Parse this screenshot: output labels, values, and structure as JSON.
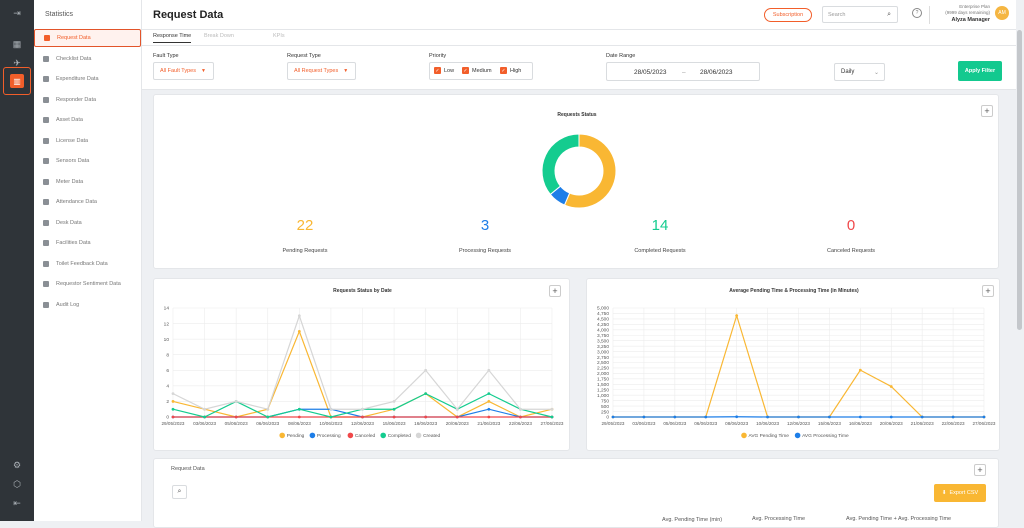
{
  "sidebar": {
    "title": "Statistics",
    "items": [
      {
        "label": "Request Data",
        "icon": "request-icon",
        "active": true
      },
      {
        "label": "Checklist Data",
        "icon": "checklist-icon"
      },
      {
        "label": "Expenditure Data",
        "icon": "expenditure-icon"
      },
      {
        "label": "Responder Data",
        "icon": "responder-icon"
      },
      {
        "label": "Asset Data",
        "icon": "asset-icon"
      },
      {
        "label": "License Data",
        "icon": "license-icon"
      },
      {
        "label": "Sensors Data",
        "icon": "sensor-icon"
      },
      {
        "label": "Meter Data",
        "icon": "meter-icon"
      },
      {
        "label": "Attendance Data",
        "icon": "attendance-icon"
      },
      {
        "label": "Desk Data",
        "icon": "desk-icon"
      },
      {
        "label": "Facilities Data",
        "icon": "facilities-icon"
      },
      {
        "label": "Toilet Feedback Data",
        "icon": "toilet-icon"
      },
      {
        "label": "Requestor Sentiment Data",
        "icon": "sentiment-icon"
      },
      {
        "label": "Audit Log",
        "icon": "audit-icon"
      }
    ]
  },
  "header": {
    "title": "Request Data",
    "subscription": "Subscription",
    "search_placeholder": "Search",
    "plan": "Enterprise Plan",
    "plan_days": "(9999 days remaining)",
    "user": "Alyza Manager",
    "avatar": "AM"
  },
  "tabs": [
    "Response Time",
    "Break Down",
    "KPIs"
  ],
  "filters": {
    "fault_label": "Fault Type",
    "fault_value": "All Fault Types",
    "request_label": "Request Type",
    "request_value": "All Request Types",
    "priority_label": "Priority",
    "priorities": [
      "Low",
      "Medium",
      "High"
    ],
    "date_label": "Date Range",
    "date_from": "28/05/2023",
    "date_sep": "–",
    "date_to": "28/06/2023",
    "period": "Daily",
    "apply": "Apply Filter"
  },
  "status_card": {
    "title": "Requests Status",
    "stats": [
      {
        "value": "22",
        "label": "Pending Requests",
        "color": "#f9b733"
      },
      {
        "value": "3",
        "label": "Processing Requests",
        "color": "#1d7ee8"
      },
      {
        "value": "14",
        "label": "Completed Requests",
        "color": "#14cc8f"
      },
      {
        "value": "0",
        "label": "Canceled Requests",
        "color": "#f0484a"
      }
    ]
  },
  "colors": {
    "accent": "#f25e2a",
    "pending": "#f9b733",
    "processing": "#1d7ee8",
    "canceled": "#f0484a",
    "completed": "#14cc8f",
    "created": "#d6d6d6"
  },
  "chart_data": [
    {
      "type": "pie",
      "title": "Requests Status",
      "categories": [
        "Pending",
        "Processing",
        "Completed",
        "Canceled"
      ],
      "values": [
        22,
        3,
        14,
        0
      ]
    },
    {
      "type": "line",
      "title": "Requests Status by Date",
      "ylim": [
        0,
        14
      ],
      "yticks": [
        0,
        2,
        4,
        6,
        8,
        10,
        12,
        14
      ],
      "x": [
        "29/05/2023",
        "03/06/2023",
        "05/06/2023",
        "06/06/2023",
        "08/06/2023",
        "10/06/2023",
        "12/06/2023",
        "15/06/2023",
        "16/06/2023",
        "20/06/2023",
        "21/06/2023",
        "22/06/2023",
        "27/06/2023"
      ],
      "series": [
        {
          "name": "Pending",
          "color": "#f9b733",
          "values": [
            2,
            1,
            0,
            1,
            11,
            0,
            0,
            1,
            3,
            0,
            2,
            0,
            1
          ]
        },
        {
          "name": "Processing",
          "color": "#1d7ee8",
          "values": [
            0,
            0,
            0,
            0,
            1,
            1,
            0,
            0,
            0,
            0,
            1,
            0,
            0
          ]
        },
        {
          "name": "Canceled",
          "color": "#f0484a",
          "values": [
            0,
            0,
            0,
            0,
            0,
            0,
            0,
            0,
            0,
            0,
            0,
            0,
            0
          ]
        },
        {
          "name": "Completed",
          "color": "#14cc8f",
          "values": [
            1,
            0,
            2,
            0,
            1,
            0,
            1,
            1,
            3,
            1,
            3,
            1,
            0
          ]
        },
        {
          "name": "Created",
          "color": "#d6d6d6",
          "values": [
            3,
            1,
            2,
            1,
            13,
            1,
            1,
            2,
            6,
            1,
            6,
            1,
            1
          ]
        }
      ]
    },
    {
      "type": "line",
      "title": "Average Pending Time & Processing Time (in Minutes)",
      "ylim": [
        0,
        5000
      ],
      "yticks": [
        "0",
        "250",
        "500",
        "750",
        "1,000",
        "1,250",
        "1,500",
        "1,750",
        "2,000",
        "2,250",
        "2,500",
        "2,750",
        "3,000",
        "3,250",
        "3,500",
        "3,750",
        "4,000",
        "4,250",
        "4,500",
        "4,750",
        "5,000"
      ],
      "x": [
        "29/05/2023",
        "03/06/2023",
        "05/06/2023",
        "06/06/2023",
        "08/06/2023",
        "10/06/2023",
        "12/06/2023",
        "15/06/2023",
        "16/06/2023",
        "20/06/2023",
        "21/06/2023",
        "22/06/2023",
        "27/06/2023"
      ],
      "series": [
        {
          "name": "AVG Pending Time",
          "color": "#f9b733",
          "values": [
            0,
            0,
            0,
            0,
            4650,
            0,
            0,
            0,
            2150,
            1400,
            0,
            0,
            0
          ]
        },
        {
          "name": "AVG Processing Time",
          "color": "#1d7ee8",
          "values": [
            0,
            0,
            0,
            0,
            10,
            0,
            0,
            0,
            0,
            0,
            0,
            0,
            0
          ]
        }
      ]
    }
  ],
  "table": {
    "title": "Request Data",
    "export": "Export CSV",
    "columns": [
      "Avg. Pending Time (min)",
      "Avg. Processing Time",
      "Avg. Pending Time + Avg. Processing Time"
    ]
  }
}
